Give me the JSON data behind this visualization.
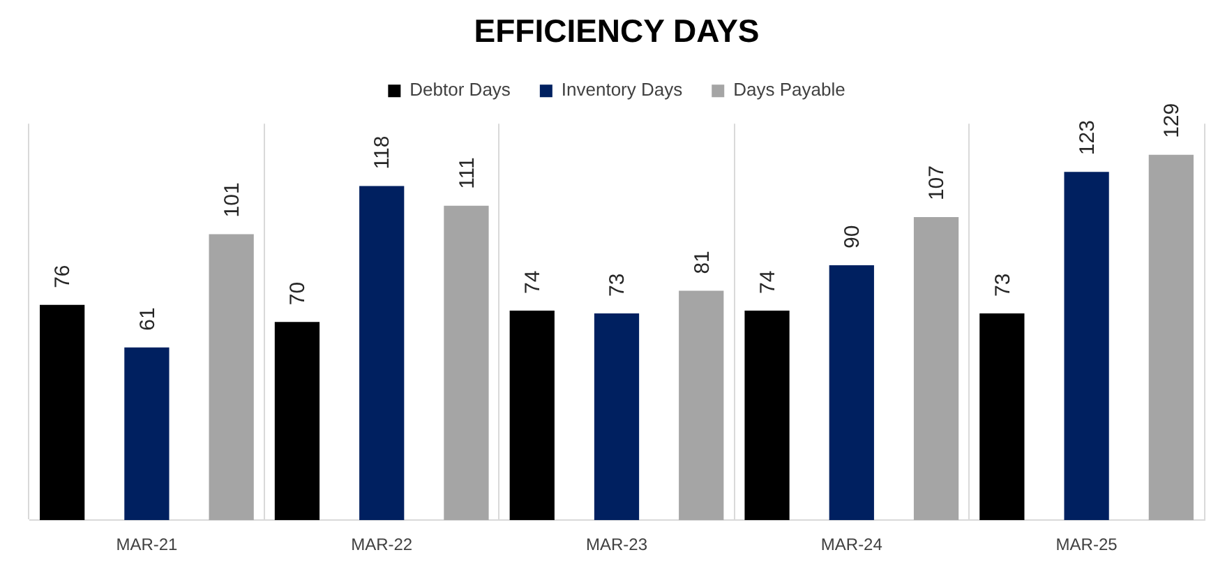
{
  "chart_data": {
    "type": "bar",
    "title": "EFFICIENCY DAYS",
    "categories": [
      "MAR-21",
      "MAR-22",
      "MAR-23",
      "MAR-24",
      "MAR-25"
    ],
    "series": [
      {
        "name": "Debtor Days",
        "color": "#000000",
        "values": [
          76,
          70,
          74,
          74,
          73
        ]
      },
      {
        "name": "Inventory Days",
        "color": "#002060",
        "values": [
          61,
          118,
          73,
          90,
          123
        ]
      },
      {
        "name": "Days Payable",
        "color": "#a5a5a5",
        "values": [
          101,
          111,
          81,
          107,
          129
        ]
      }
    ],
    "ylim": [
      0,
      140
    ],
    "data_labels": true,
    "grid": "x",
    "legend": "top",
    "tick_labels": "x"
  }
}
